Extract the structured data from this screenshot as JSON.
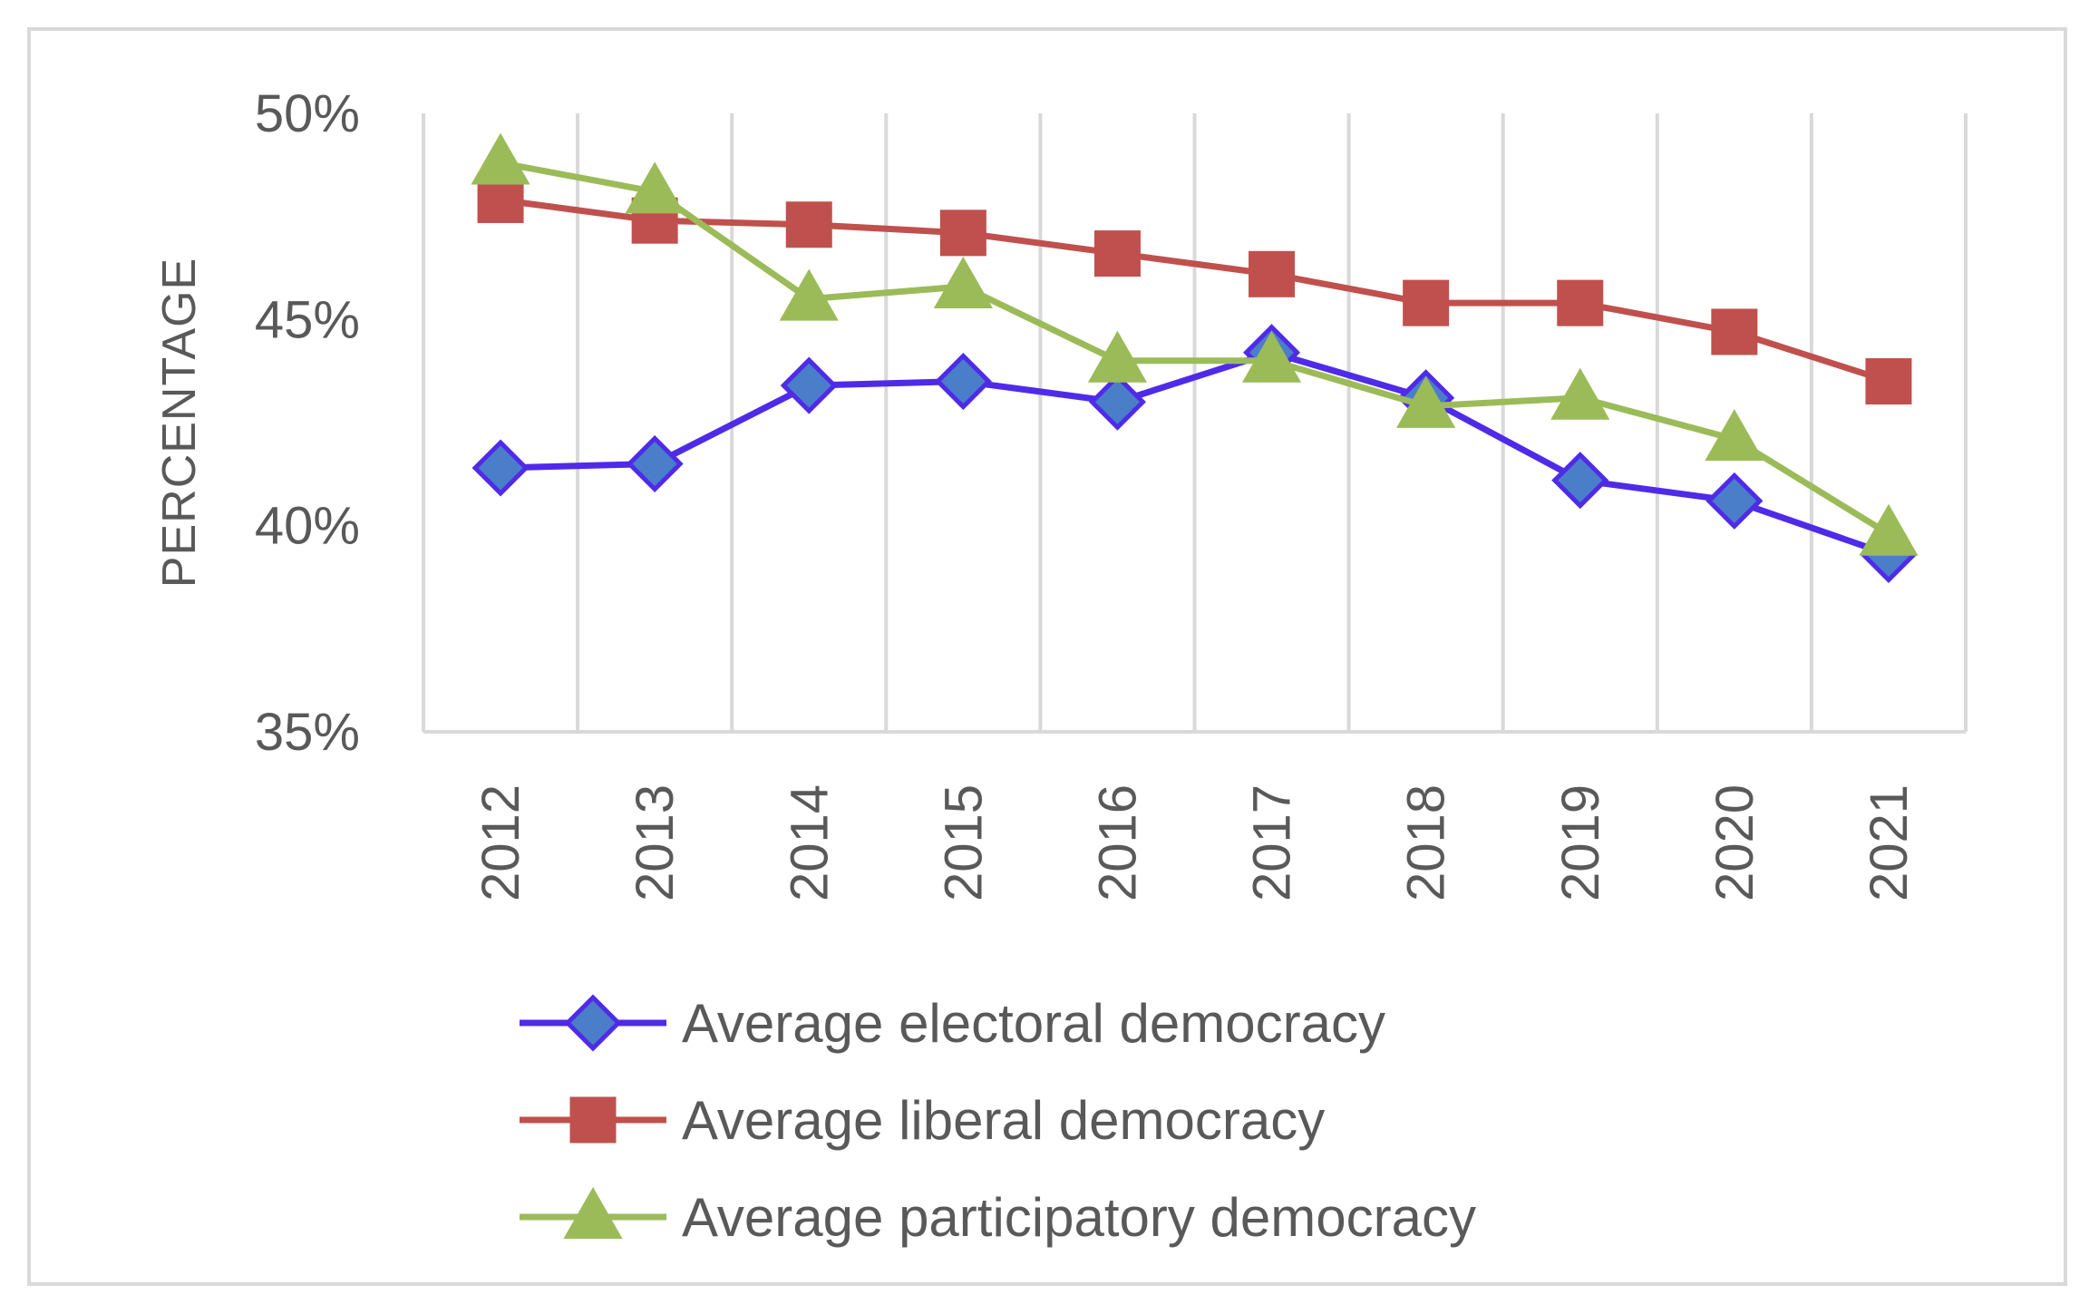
{
  "chart_data": {
    "type": "line",
    "title": "",
    "xlabel": "",
    "ylabel": "PERCENTAGE",
    "ylim": [
      35,
      50
    ],
    "yticks": [
      {
        "value": 50,
        "label": "50%"
      },
      {
        "value": 45,
        "label": "45%"
      },
      {
        "value": 40,
        "label": "40%"
      },
      {
        "value": 35,
        "label": "35%"
      }
    ],
    "categories": [
      "2012",
      "2013",
      "2014",
      "2015",
      "2016",
      "2017",
      "2018",
      "2019",
      "2020",
      "2021"
    ],
    "grid": "vertical",
    "legend_position": "bottom",
    "series": [
      {
        "name": "Average electoral democracy",
        "marker": "diamond",
        "color": "#4f2be8",
        "fill": "#4a7ec9",
        "values": [
          41.4,
          41.5,
          43.4,
          43.5,
          43.0,
          44.2,
          43.1,
          41.1,
          40.6,
          39.3
        ]
      },
      {
        "name": "Average liberal democracy",
        "marker": "square",
        "color": "#c0504d",
        "fill": "#c0504d",
        "values": [
          47.9,
          47.4,
          47.3,
          47.1,
          46.6,
          46.1,
          45.4,
          45.4,
          44.7,
          43.5
        ]
      },
      {
        "name": "Average participatory democracy",
        "marker": "triangle",
        "color": "#9bbb59",
        "fill": "#9bbb59",
        "values": [
          48.8,
          48.1,
          45.5,
          45.8,
          44.0,
          44.0,
          42.9,
          43.1,
          42.1,
          39.8
        ]
      }
    ]
  }
}
